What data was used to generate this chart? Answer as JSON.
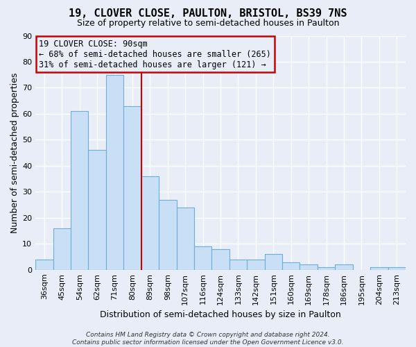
{
  "title": "19, CLOVER CLOSE, PAULTON, BRISTOL, BS39 7NS",
  "subtitle": "Size of property relative to semi-detached houses in Paulton",
  "xlabel": "Distribution of semi-detached houses by size in Paulton",
  "ylabel": "Number of semi-detached properties",
  "bins": [
    "36sqm",
    "45sqm",
    "54sqm",
    "62sqm",
    "71sqm",
    "80sqm",
    "89sqm",
    "98sqm",
    "107sqm",
    "116sqm",
    "124sqm",
    "133sqm",
    "142sqm",
    "151sqm",
    "160sqm",
    "169sqm",
    "178sqm",
    "186sqm",
    "195sqm",
    "204sqm",
    "213sqm"
  ],
  "values": [
    4,
    16,
    61,
    46,
    75,
    63,
    36,
    27,
    24,
    9,
    8,
    4,
    4,
    6,
    3,
    2,
    1,
    2,
    0,
    1,
    1
  ],
  "bar_color": "#c9dff5",
  "bar_edge_color": "#6baed6",
  "annotation_box_text": "19 CLOVER CLOSE: 90sqm\n← 68% of semi-detached houses are smaller (265)\n31% of semi-detached houses are larger (121) →",
  "annotation_box_edge_color": "#cc0000",
  "red_line_x": 6,
  "ylim": [
    0,
    90
  ],
  "yticks": [
    0,
    10,
    20,
    30,
    40,
    50,
    60,
    70,
    80,
    90
  ],
  "footer": "Contains HM Land Registry data © Crown copyright and database right 2024.\nContains public sector information licensed under the Open Government Licence v3.0.",
  "background_color": "#e8edf8",
  "grid_color": "#ffffff",
  "title_fontsize": 11,
  "subtitle_fontsize": 9,
  "axis_label_fontsize": 9,
  "tick_fontsize": 8,
  "ann_fontsize": 8.5,
  "footer_fontsize": 6.5
}
